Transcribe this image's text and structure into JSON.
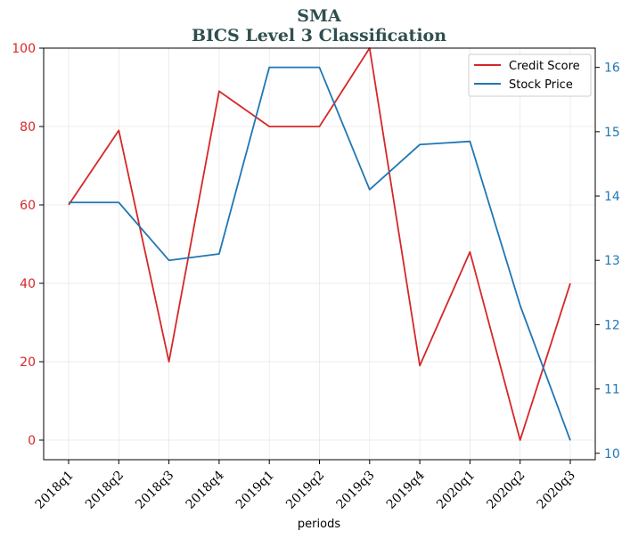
{
  "chart_data": {
    "type": "line",
    "title": "SMA",
    "subtitle": "BICS Level 3 Classification",
    "xlabel": "periods",
    "ylabel": "",
    "categories": [
      "2018q1",
      "2018q2",
      "2018q3",
      "2018q4",
      "2019q1",
      "2019q2",
      "2019q3",
      "2019q4",
      "2020q1",
      "2020q2",
      "2020q3"
    ],
    "left_axis": {
      "ylim": [
        -5,
        100
      ],
      "ticks": [
        0,
        20,
        40,
        60,
        80,
        100
      ],
      "color": "#d62728"
    },
    "right_axis": {
      "ylim": [
        9.9,
        16.3
      ],
      "ticks": [
        10,
        11,
        12,
        13,
        14,
        15,
        16
      ],
      "color": "#1f77b4"
    },
    "series": [
      {
        "name": "Credit Score",
        "axis": "left",
        "color": "#d62728",
        "values": [
          60,
          79,
          20,
          89,
          80,
          80,
          100,
          19,
          48,
          0,
          40
        ]
      },
      {
        "name": "Stock Price",
        "axis": "right",
        "color": "#1f77b4",
        "values": [
          13.9,
          13.9,
          13.0,
          13.1,
          16.0,
          16.0,
          14.1,
          14.8,
          14.85,
          12.3,
          10.2
        ]
      }
    ],
    "grid": true,
    "legend_position": "top-right"
  }
}
